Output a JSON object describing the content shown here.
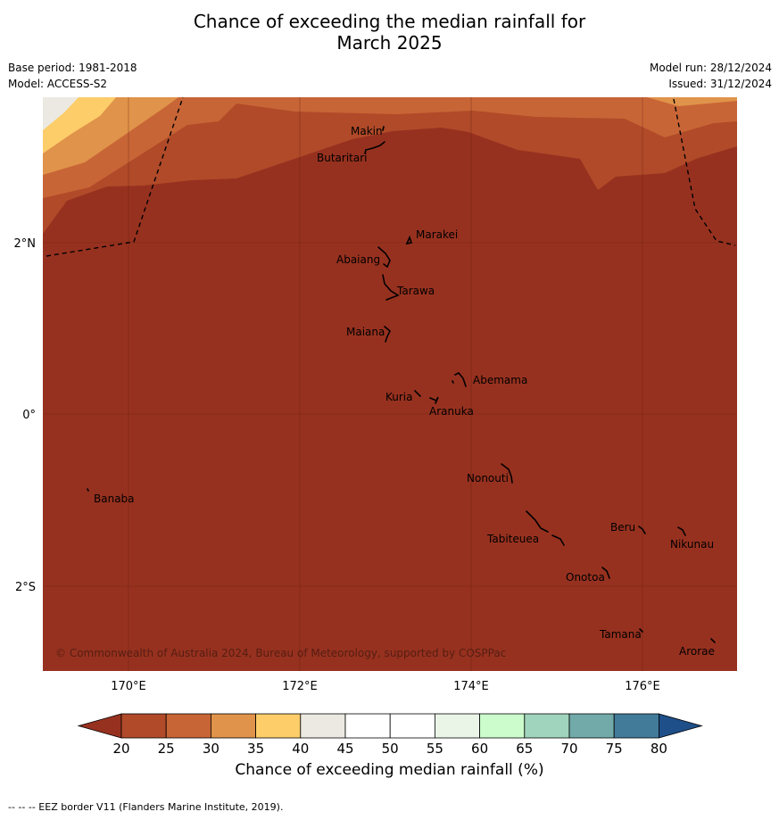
{
  "title_line1": "Chance of exceeding the median rainfall for",
  "title_line2": "March 2025",
  "base_period": "Base period: 1981-2018",
  "model": "Model: ACCESS-S2",
  "model_run": "Model run: 28/12/2024",
  "issued": "Issued: 31/12/2024",
  "copyright": "© Commonwealth of Australia 2024, Bureau of Meteorology, supported by COSPPac",
  "lat_labels": [
    "2°N",
    "0°",
    "2°S"
  ],
  "lon_labels": [
    "170°E",
    "172°E",
    "174°E",
    "176°E"
  ],
  "islands": [
    "Makin",
    "Butaritari",
    "Marakei",
    "Abaiang",
    "Tarawa",
    "Maiana",
    "Abemama",
    "Kuria",
    "Aranuka",
    "Nonouti",
    "Banaba",
    "Tabiteuea",
    "Beru",
    "Nikunau",
    "Onotoa",
    "Tamana",
    "Arorae"
  ],
  "colorbar": {
    "title": "Chance of exceeding median rainfall (%)",
    "ticks": [
      "20",
      "25",
      "30",
      "35",
      "40",
      "45",
      "50",
      "55",
      "60",
      "65",
      "70",
      "75",
      "80"
    ],
    "colors": [
      "#97311f",
      "#b04a29",
      "#c86536",
      "#e0934a",
      "#fdcd6a",
      "#ece9e2",
      "#ffffff",
      "#ffffff",
      "#eaf5e8",
      "#ccfccc",
      "#a0d4bc",
      "#72aaaa",
      "#427b9a",
      "#1e4f88"
    ]
  },
  "footer": "--  --  -- EEZ border V11 (Flanders Marine Institute, 2019)."
}
